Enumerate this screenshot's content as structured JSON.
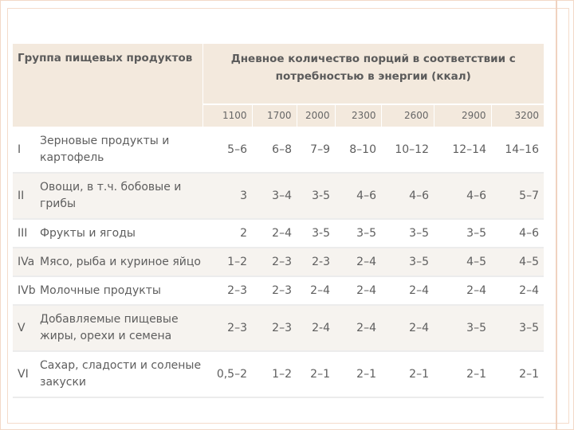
{
  "header": {
    "group": "Группа пищевых продуктов",
    "main": "Дневное количество порций в соответствии с потребностью в энергии (ккал)"
  },
  "kcal": [
    "1100",
    "1700",
    "2000",
    "2300",
    "2600",
    "2900",
    "3200"
  ],
  "rows": [
    {
      "num": "I",
      "name": "Зерновые продукты и картофель",
      "values": [
        "5–6",
        "6–8",
        "7–9",
        "8–10",
        "10–12",
        "12–14",
        "14–16"
      ]
    },
    {
      "num": "II",
      "name": "Овощи, в т.ч. бобовые и грибы",
      "values": [
        "3",
        "3–4",
        "3-5",
        "4–6",
        "4–6",
        "4–6",
        "5–7"
      ]
    },
    {
      "num": "III",
      "name": "Фрукты и ягоды",
      "values": [
        "2",
        "2–4",
        "3-5",
        "3–5",
        "3–5",
        "3–5",
        "4–6"
      ]
    },
    {
      "num": "IVa",
      "name": "Мясо, рыба и куриное яйцо",
      "values": [
        "1–2",
        "2–3",
        "2-3",
        "2–4",
        "3–5",
        "4–5",
        "4–5"
      ]
    },
    {
      "num": "IVb",
      "name": "Молочные продукты",
      "values": [
        "2–3",
        "2–3",
        "2–4",
        "2–4",
        "2–4",
        "2–4",
        "2–4"
      ]
    },
    {
      "num": "V",
      "name": "Добавляемые пищевые жиры, орехи и семена",
      "values": [
        "2–3",
        "2–3",
        "2-4",
        "2–4",
        "2–4",
        "3–5",
        "3–5"
      ]
    },
    {
      "num": "VI",
      "name": "Сахар, сладости и соленые закуски",
      "values": [
        "0,5–2",
        "1–2",
        "2–1",
        "2–1",
        "2–1",
        "2–1",
        "2–1"
      ]
    }
  ]
}
